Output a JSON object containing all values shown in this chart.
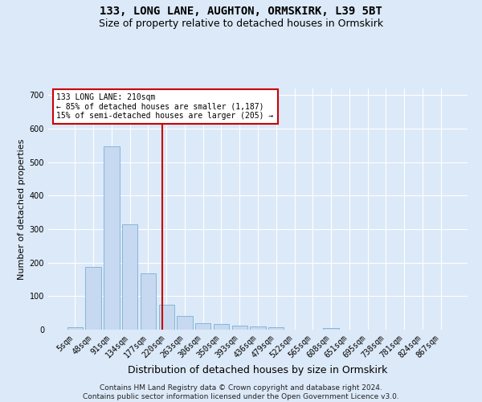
{
  "title": "133, LONG LANE, AUGHTON, ORMSKIRK, L39 5BT",
  "subtitle": "Size of property relative to detached houses in Ormskirk",
  "xlabel": "Distribution of detached houses by size in Ormskirk",
  "ylabel": "Number of detached properties",
  "bin_labels": [
    "5sqm",
    "48sqm",
    "91sqm",
    "134sqm",
    "177sqm",
    "220sqm",
    "263sqm",
    "306sqm",
    "350sqm",
    "393sqm",
    "436sqm",
    "479sqm",
    "522sqm",
    "565sqm",
    "608sqm",
    "651sqm",
    "695sqm",
    "738sqm",
    "781sqm",
    "824sqm",
    "867sqm"
  ],
  "bar_values": [
    7,
    188,
    548,
    315,
    168,
    75,
    42,
    20,
    18,
    12,
    10,
    8,
    0,
    0,
    5,
    0,
    0,
    0,
    0,
    0,
    0
  ],
  "bar_color": "#c6d9f0",
  "bar_edge_color": "#7bafd4",
  "vline_color": "#cc0000",
  "annotation_text": "133 LONG LANE: 210sqm\n← 85% of detached houses are smaller (1,187)\n15% of semi-detached houses are larger (205) →",
  "annotation_box_color": "#ffffff",
  "annotation_box_edge_color": "#cc0000",
  "ylim": [
    0,
    720
  ],
  "yticks": [
    0,
    100,
    200,
    300,
    400,
    500,
    600,
    700
  ],
  "footer_text": "Contains HM Land Registry data © Crown copyright and database right 2024.\nContains public sector information licensed under the Open Government Licence v3.0.",
  "background_color": "#dce9f8",
  "plot_bg_color": "#dce9f8",
  "grid_color": "#ffffff",
  "title_fontsize": 10,
  "subtitle_fontsize": 9,
  "axis_label_fontsize": 8,
  "tick_fontsize": 7,
  "footer_fontsize": 6.5,
  "vline_x_index": 4.77
}
